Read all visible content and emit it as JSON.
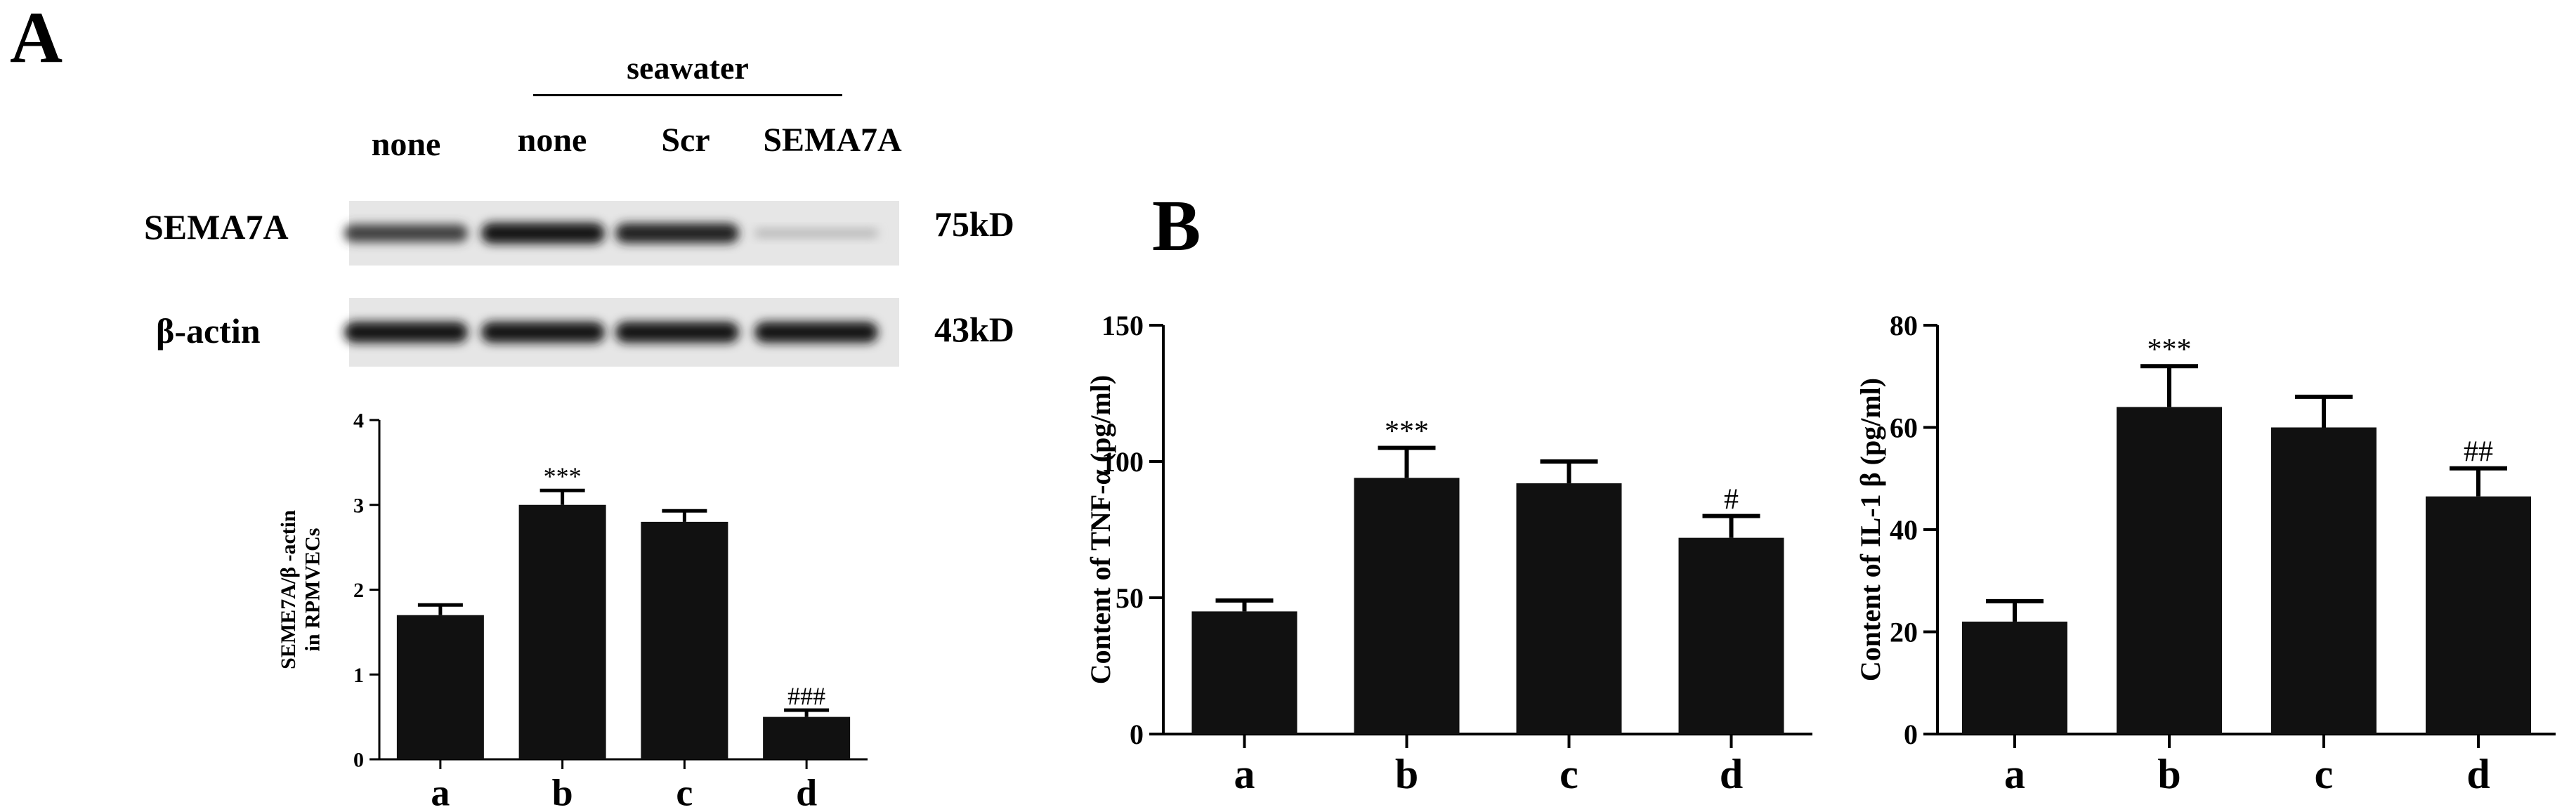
{
  "panel_a": {
    "letter": "A",
    "group_label": "seawater",
    "lanes": [
      "none",
      "none",
      "Scr",
      "SEMA7A"
    ],
    "blots": [
      {
        "protein": "SEMA7A",
        "size": "75kD",
        "intensities": [
          0.78,
          1.0,
          0.92,
          0.18
        ]
      },
      {
        "protein": "β-actin",
        "size": "43kD",
        "intensities": [
          1.0,
          1.0,
          1.0,
          1.0
        ]
      }
    ]
  },
  "panel_b": {
    "letter": "B"
  },
  "chart_data": [
    {
      "type": "bar",
      "categories": [
        "a",
        "b",
        "c",
        "d"
      ],
      "values": [
        1.7,
        3.0,
        2.8,
        0.5
      ],
      "errors": [
        0.12,
        0.17,
        0.13,
        0.08
      ],
      "annotations": [
        "",
        "***",
        "",
        "###"
      ],
      "title": "",
      "xlabel": "",
      "ylabel_lines": [
        "SEME7A/β -actin",
        "in RPMVECs"
      ],
      "ylim": [
        0,
        4
      ],
      "yticks": [
        0,
        1,
        2,
        3,
        4
      ],
      "color": "#111111"
    },
    {
      "type": "bar",
      "categories": [
        "a",
        "b",
        "c",
        "d"
      ],
      "values": [
        45,
        94,
        92,
        72
      ],
      "errors": [
        4,
        11,
        8,
        8
      ],
      "annotations": [
        "",
        "***",
        "",
        "#"
      ],
      "title": "",
      "xlabel": "",
      "ylabel": "Content of TNF-α (pg/ml)",
      "ylim": [
        0,
        150
      ],
      "yticks": [
        0,
        50,
        100,
        150
      ],
      "color": "#111111"
    },
    {
      "type": "bar",
      "categories": [
        "a",
        "b",
        "c",
        "d"
      ],
      "values": [
        22,
        64,
        60,
        46.5
      ],
      "errors": [
        4,
        8,
        6,
        5.5
      ],
      "annotations": [
        "",
        "***",
        "",
        "##"
      ],
      "title": "",
      "xlabel": "",
      "ylabel": "Content of IL-1 β (pg/ml)",
      "ylim": [
        0,
        80
      ],
      "yticks": [
        0,
        20,
        40,
        60,
        80
      ],
      "color": "#111111"
    }
  ]
}
